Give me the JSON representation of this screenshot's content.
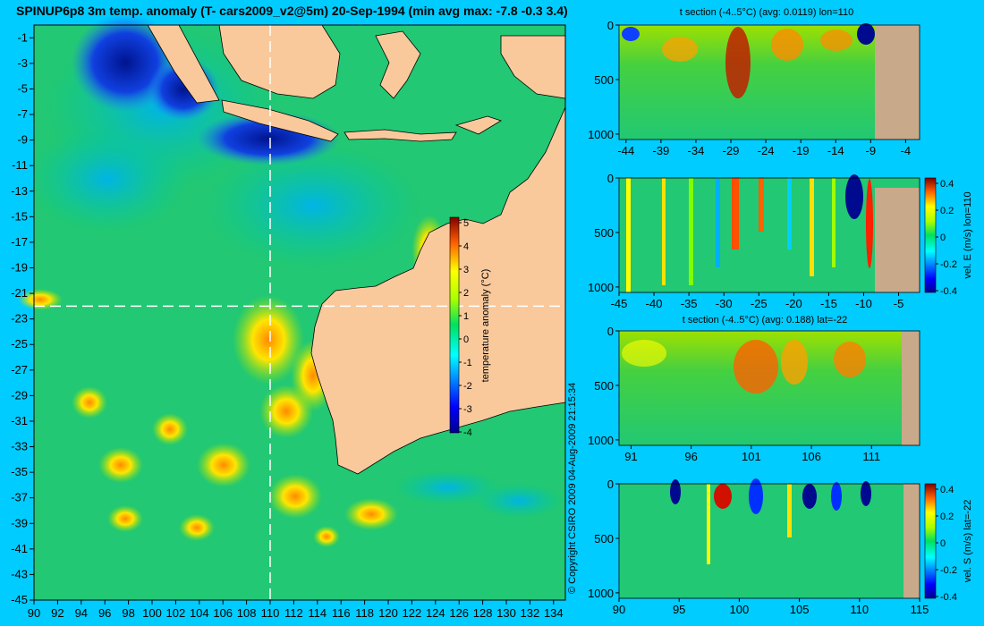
{
  "title": "SPINUP6p8 3m temp. anomaly (T- cars2009_v2@5m) 20-Sep-1994 (min avg max: -7.8 -0.3 3.4)",
  "copyright": "© Copyright CSIRO 2009   04-Aug-2009 21:15:34",
  "colors": {
    "background": "#00ccff",
    "land": "#f9c99c",
    "land_section": "#c8a98a",
    "ocean_base": "#22c873"
  },
  "chart_data": [
    {
      "type": "heatmap",
      "title": "SPINUP6p8 3m temp. anomaly (T- cars2009_v2@5m) 20-Sep-1994 (min avg max: -7.8 -0.3 3.4)",
      "x_ticks": [
        "90",
        "92",
        "94",
        "96",
        "98",
        "100",
        "102",
        "104",
        "106",
        "108",
        "110",
        "112",
        "114",
        "116",
        "118",
        "120",
        "122",
        "124",
        "126",
        "128",
        "130",
        "132",
        "134"
      ],
      "y_ticks": [
        "-1",
        "-3",
        "-5",
        "-7",
        "-9",
        "-11",
        "-13",
        "-15",
        "-17",
        "-19",
        "-21",
        "-23",
        "-25",
        "-27",
        "-29",
        "-31",
        "-33",
        "-35",
        "-37",
        "-39",
        "-41",
        "-43",
        "-45"
      ],
      "xlim": [
        90,
        135
      ],
      "ylim": [
        -45,
        0
      ],
      "colorbar": {
        "label": "temperature anomaly (°C)",
        "min": -4,
        "max": 5,
        "ticks": [
          "5",
          "4",
          "3",
          "2",
          "1",
          "0",
          "-1",
          "-2",
          "-3",
          "-4"
        ]
      },
      "section_lines": {
        "lon": 110,
        "lat": -22
      }
    },
    {
      "type": "heatmap",
      "title": "t section (-4..5°C) (avg: 0.0119) lon=110",
      "x_ticks": [
        "-44",
        "-39",
        "-34",
        "-29",
        "-24",
        "-19",
        "-14",
        "-9",
        "-4"
      ],
      "y_ticks": [
        "0",
        "500",
        "1000"
      ],
      "xlim": [
        -45,
        -2
      ],
      "ylim": [
        1050,
        0
      ]
    },
    {
      "type": "heatmap",
      "title": "",
      "x_ticks": [
        "-45",
        "-40",
        "-35",
        "-30",
        "-25",
        "-20",
        "-15",
        "-10",
        "-5"
      ],
      "y_ticks": [
        "0",
        "500",
        "1000"
      ],
      "xlim": [
        -45,
        -2
      ],
      "ylim": [
        1050,
        0
      ],
      "colorbar": {
        "label": "vel. E (m/s) lon=110",
        "min": -0.4,
        "max": 0.4,
        "ticks": [
          "0.4",
          "0.2",
          "0",
          "-0.2",
          "-0.4"
        ]
      }
    },
    {
      "type": "heatmap",
      "title": "t section (-4..5°C) (avg: 0.188) lat=-22",
      "x_ticks": [
        "91",
        "96",
        "101",
        "106",
        "111"
      ],
      "y_ticks": [
        "0",
        "500",
        "1000"
      ],
      "xlim": [
        90,
        115
      ],
      "ylim": [
        1050,
        0
      ]
    },
    {
      "type": "heatmap",
      "title": "",
      "x_ticks": [
        "90",
        "95",
        "100",
        "105",
        "110",
        "115"
      ],
      "y_ticks": [
        "0",
        "500",
        "1000"
      ],
      "xlim": [
        90,
        115
      ],
      "ylim": [
        1050,
        0
      ],
      "colorbar": {
        "label": "vel. S (m/s) lat=-22",
        "min": -0.4,
        "max": 0.4,
        "ticks": [
          "0.4",
          "0.2",
          "0",
          "-0.2",
          "-0.4"
        ]
      }
    }
  ]
}
